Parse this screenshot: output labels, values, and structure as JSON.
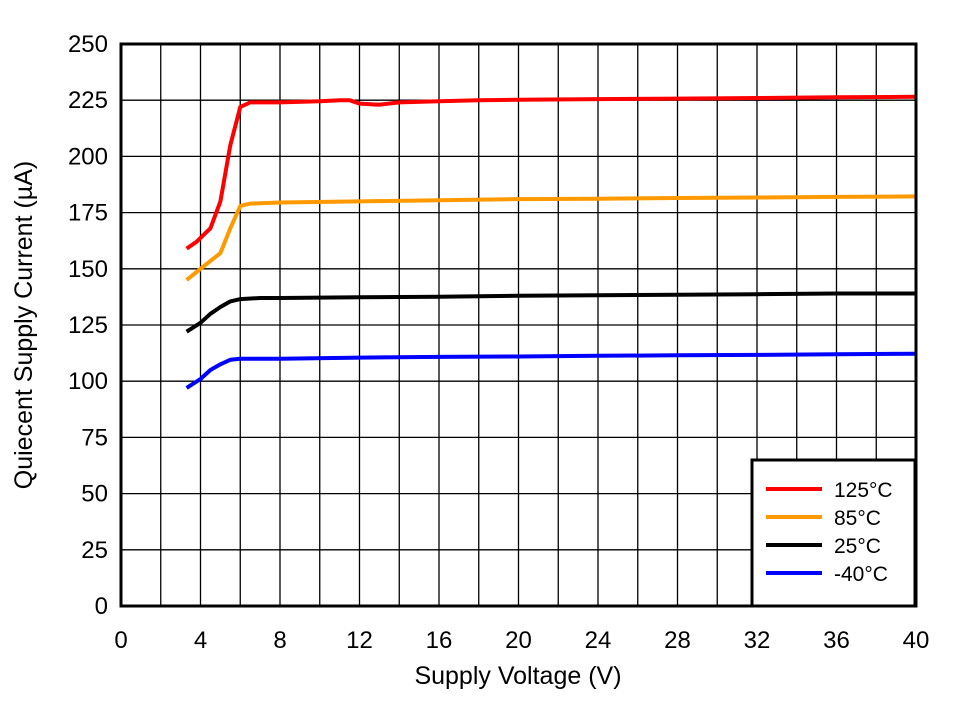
{
  "chart_data": {
    "type": "line",
    "title": "",
    "xlabel": "Supply Voltage (V)",
    "ylabel": "Quiecent Supply Current (µA)",
    "xlim": [
      0,
      40
    ],
    "ylim": [
      0,
      250
    ],
    "x_ticks": [
      0,
      4,
      8,
      12,
      16,
      20,
      24,
      28,
      32,
      36,
      40
    ],
    "y_ticks": [
      0,
      25,
      50,
      75,
      100,
      125,
      150,
      175,
      200,
      225,
      250
    ],
    "x_grid_step": 2,
    "y_grid_step": 25,
    "grid": true,
    "legend_position": "lower right",
    "series": [
      {
        "name": "125°C",
        "color": "#ff0000",
        "points": [
          [
            3.3,
            159
          ],
          [
            3.8,
            162
          ],
          [
            4.5,
            168
          ],
          [
            5.0,
            180
          ],
          [
            5.5,
            205
          ],
          [
            6.0,
            222
          ],
          [
            6.5,
            224
          ],
          [
            8,
            224
          ],
          [
            10,
            224.5
          ],
          [
            11,
            225
          ],
          [
            11.5,
            225
          ],
          [
            12,
            223.5
          ],
          [
            13,
            223
          ],
          [
            14,
            224
          ],
          [
            16,
            224.5
          ],
          [
            18,
            225
          ],
          [
            20,
            225.2
          ],
          [
            24,
            225.5
          ],
          [
            28,
            225.7
          ],
          [
            32,
            226
          ],
          [
            36,
            226.3
          ],
          [
            40,
            226.5
          ]
        ]
      },
      {
        "name": "85°C",
        "color": "#ff9900",
        "points": [
          [
            3.3,
            145
          ],
          [
            4.0,
            150
          ],
          [
            5.0,
            157
          ],
          [
            5.5,
            168
          ],
          [
            6.0,
            178
          ],
          [
            6.5,
            179
          ],
          [
            8,
            179.5
          ],
          [
            12,
            180
          ],
          [
            16,
            180.5
          ],
          [
            20,
            181
          ],
          [
            24,
            181.2
          ],
          [
            28,
            181.5
          ],
          [
            32,
            181.7
          ],
          [
            36,
            182
          ],
          [
            40,
            182.2
          ]
        ]
      },
      {
        "name": "25°C",
        "color": "#000000",
        "points": [
          [
            3.3,
            122
          ],
          [
            4.0,
            126
          ],
          [
            4.5,
            130
          ],
          [
            5.0,
            133
          ],
          [
            5.5,
            135.5
          ],
          [
            6.0,
            136.5
          ],
          [
            7,
            137
          ],
          [
            8,
            137
          ],
          [
            12,
            137.3
          ],
          [
            16,
            137.6
          ],
          [
            20,
            138
          ],
          [
            24,
            138.2
          ],
          [
            28,
            138.5
          ],
          [
            32,
            138.7
          ],
          [
            36,
            139
          ],
          [
            40,
            139
          ]
        ]
      },
      {
        "name": "-40°C",
        "color": "#0000ff",
        "points": [
          [
            3.3,
            97
          ],
          [
            4.0,
            101
          ],
          [
            4.5,
            105
          ],
          [
            5.0,
            107.5
          ],
          [
            5.5,
            109.5
          ],
          [
            6.0,
            110
          ],
          [
            8,
            110
          ],
          [
            12,
            110.5
          ],
          [
            16,
            110.8
          ],
          [
            20,
            111
          ],
          [
            24,
            111.3
          ],
          [
            28,
            111.5
          ],
          [
            32,
            111.7
          ],
          [
            36,
            112
          ],
          [
            40,
            112.2
          ]
        ]
      }
    ]
  }
}
